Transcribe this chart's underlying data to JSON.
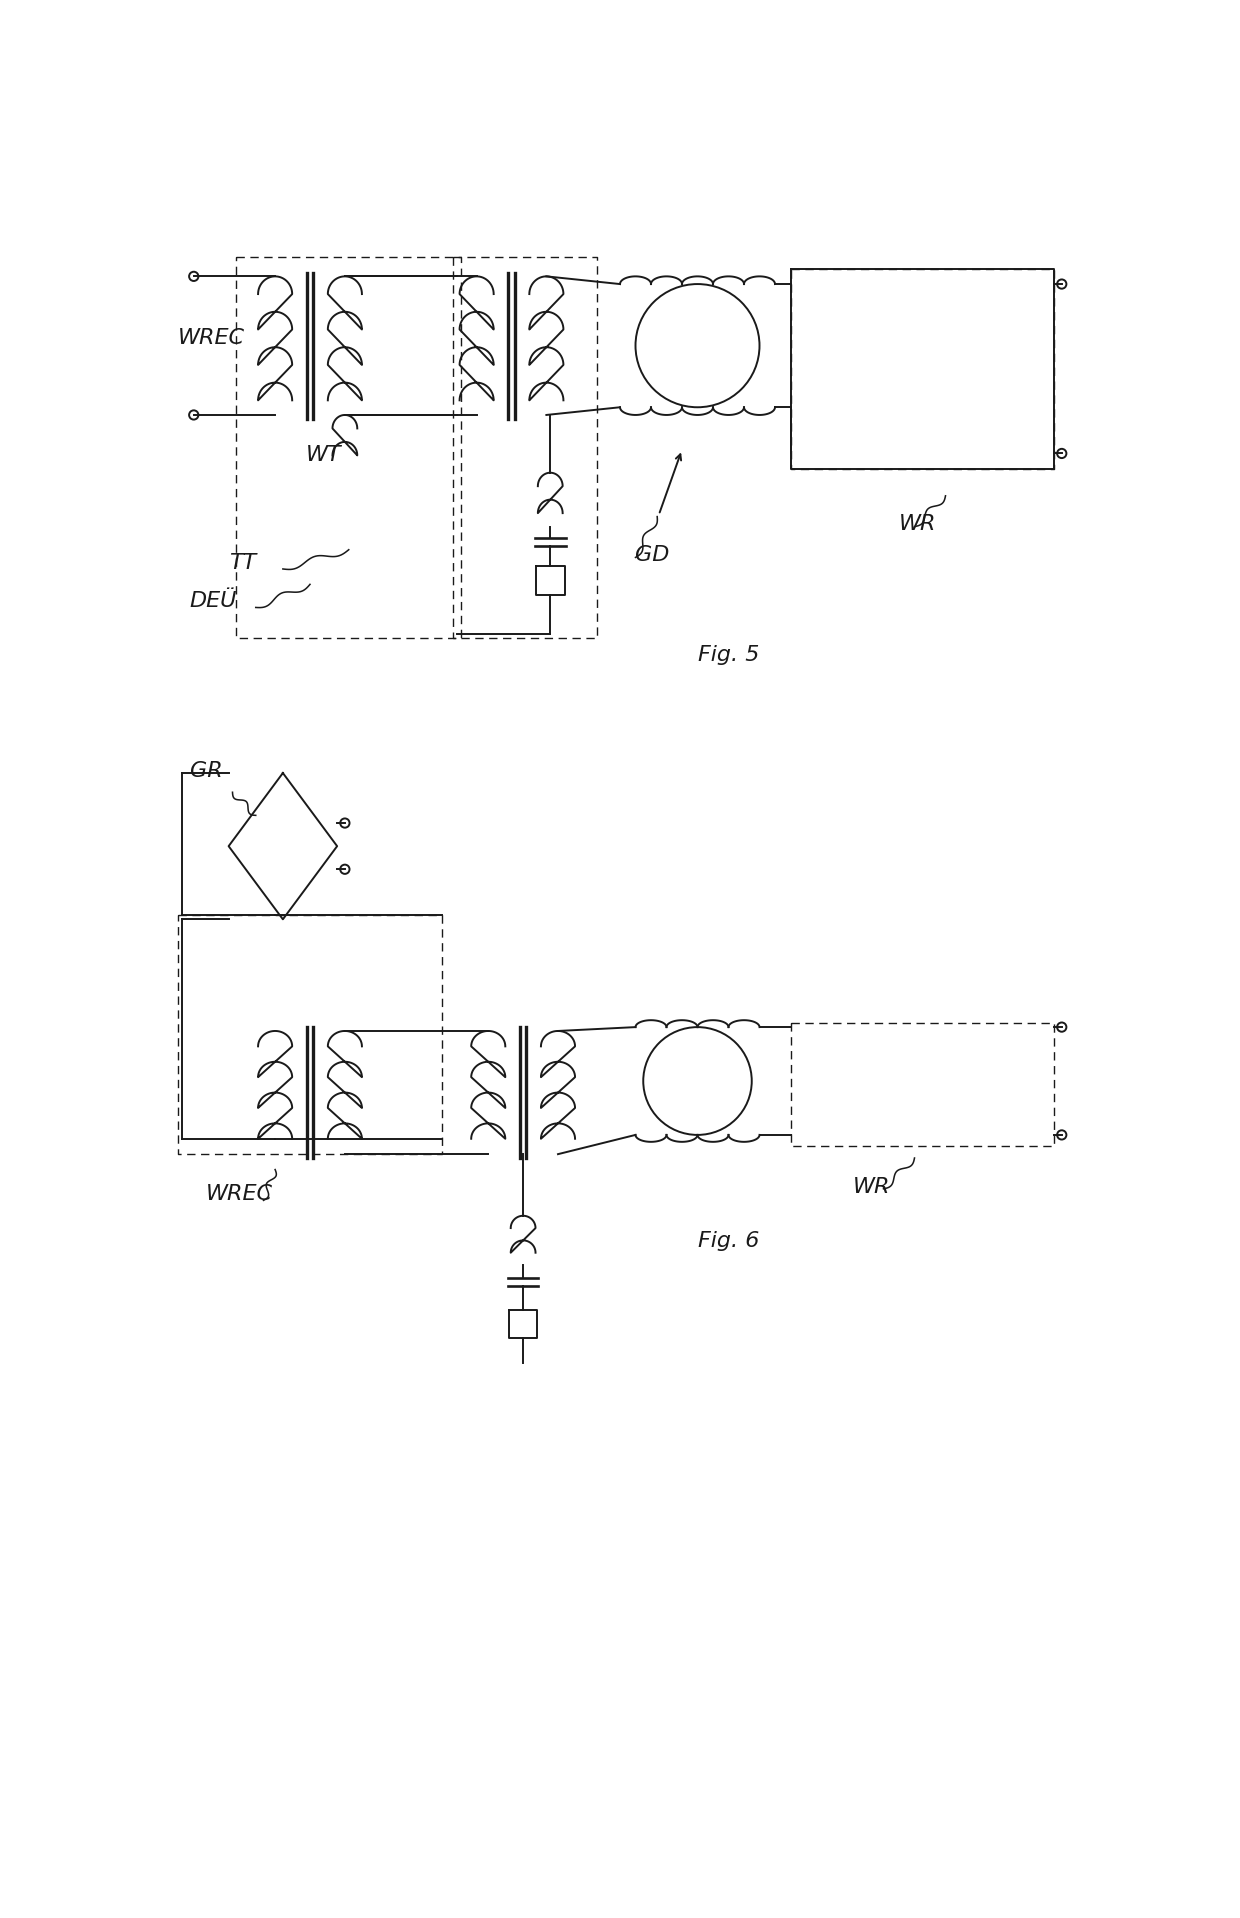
{
  "bg_color": "#ffffff",
  "line_color": "#1a1a1a",
  "lw": 1.4,
  "dlw": 1.0,
  "fig_width": 12.4,
  "fig_height": 19.18,
  "fig5_label": "Fig. 5",
  "fig6_label": "Fig. 6",
  "labels": {
    "WREC5": "WREC",
    "WT5": "WT",
    "TT5": "TT",
    "DEU5": "DEÜ",
    "GD5": "GD",
    "WR5": "WR",
    "GR6": "GR",
    "WREC6": "WREC",
    "WR6": "WR"
  }
}
